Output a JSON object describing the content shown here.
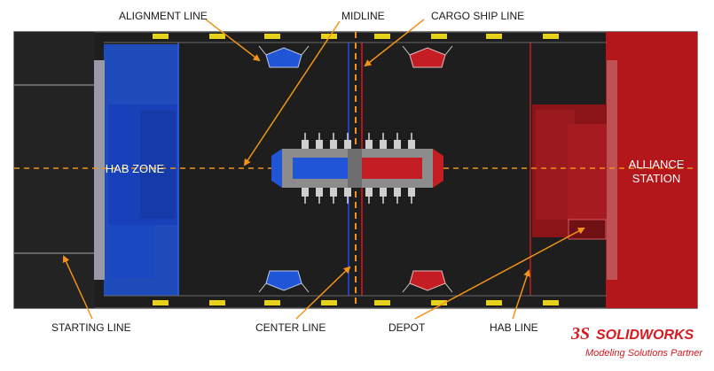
{
  "labels": {
    "alignment_line": "ALIGNMENT LINE",
    "midline": "MIDLINE",
    "cargo_ship_line": "CARGO SHIP LINE",
    "hab_zone": "HAB ZONE",
    "alliance_station_1": "ALLIANCE",
    "alliance_station_2": "STATION",
    "starting_line": "STARTING LINE",
    "center_line": "CENTER LINE",
    "depot": "DEPOT",
    "hab_line": "HAB LINE"
  },
  "brand": {
    "logo_mark": "3S",
    "name": "SOLIDWORKS",
    "tagline": "Modeling Solutions Partner"
  },
  "colors": {
    "field": "#1e1e1e",
    "blue_alliance": "#1f55d6",
    "red_alliance": "#b3161b",
    "callout_arrow": "#f29318",
    "midline_dash": "#f29318",
    "brand_red": "#d71920"
  }
}
